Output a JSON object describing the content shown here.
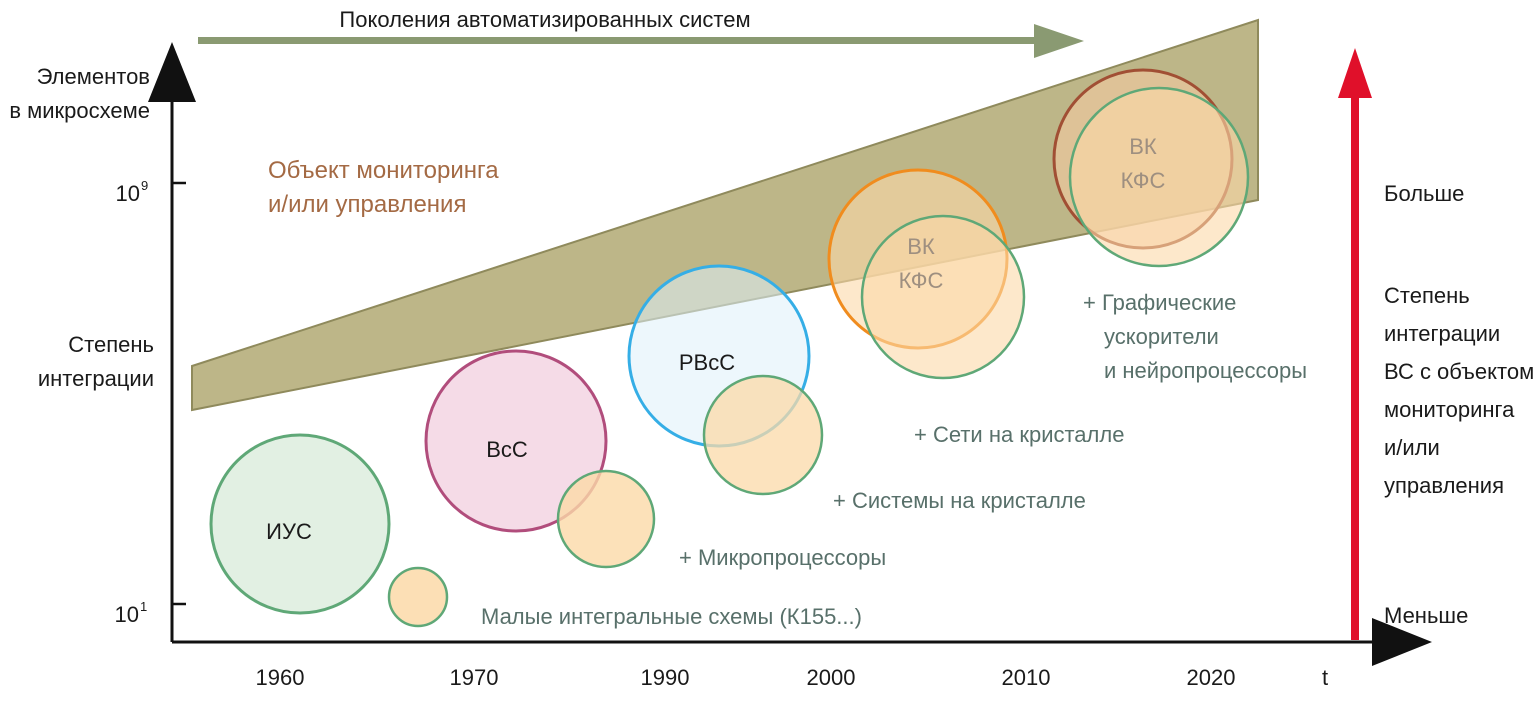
{
  "header": {
    "generations_label": "Поколения автоматизированных систем"
  },
  "y_axis_left": {
    "title_line1": "Элементов",
    "title_line2": "в микросхеме",
    "tick_high_base": "10",
    "tick_high_exp": "9",
    "tick_low_base": "10",
    "tick_low_exp": "1",
    "mid_line1": "Степень",
    "mid_line2": "интеграции"
  },
  "x_axis": {
    "ticks": [
      "1960",
      "1970",
      "1990",
      "2000",
      "2010",
      "2020"
    ],
    "var_label": "t"
  },
  "band": {
    "label_line1": "Объект мониторинга",
    "label_line2": "и/или управления"
  },
  "circles": {
    "ius": "ИУС",
    "vss": "ВсС",
    "rvss": "РВсС",
    "vk_kfs_1_line1": "ВК",
    "vk_kfs_1_line2": "КФС",
    "vk_kfs_2_line1": "ВК",
    "vk_kfs_2_line2": "КФС"
  },
  "annotations": {
    "small_ic": "Малые интегральные схемы (К155...)",
    "microprocessors": "+ Микропроцессоры",
    "soc": "+ Системы на кристалле",
    "noc": "+ Сети на кристалле",
    "gpu_line1": "+ Графические",
    "gpu_line2": "ускорители",
    "gpu_line3": "и нейропроцессоры"
  },
  "right_axis": {
    "top_label": "Больше",
    "bottom_label": "Меньше",
    "title_lines": [
      "Степень",
      "интеграции",
      "ВС с объектом",
      "мониторинга",
      "и/или",
      "управления"
    ]
  },
  "colors": {
    "axis": "#111111",
    "band_fill": "#b7b07e",
    "band_stroke": "#8f8a5c",
    "green_arrow": "#8a9a72",
    "red_arrow": "#e0102a",
    "circle_green_stroke": "#5fa877",
    "circle_magenta_stroke": "#b14d7c",
    "circle_blue_stroke": "#35aee6",
    "circle_orange_stroke": "#f08c1e",
    "circle_brown_stroke": "#a14f34",
    "peach_fill": "#fbd9a8"
  }
}
